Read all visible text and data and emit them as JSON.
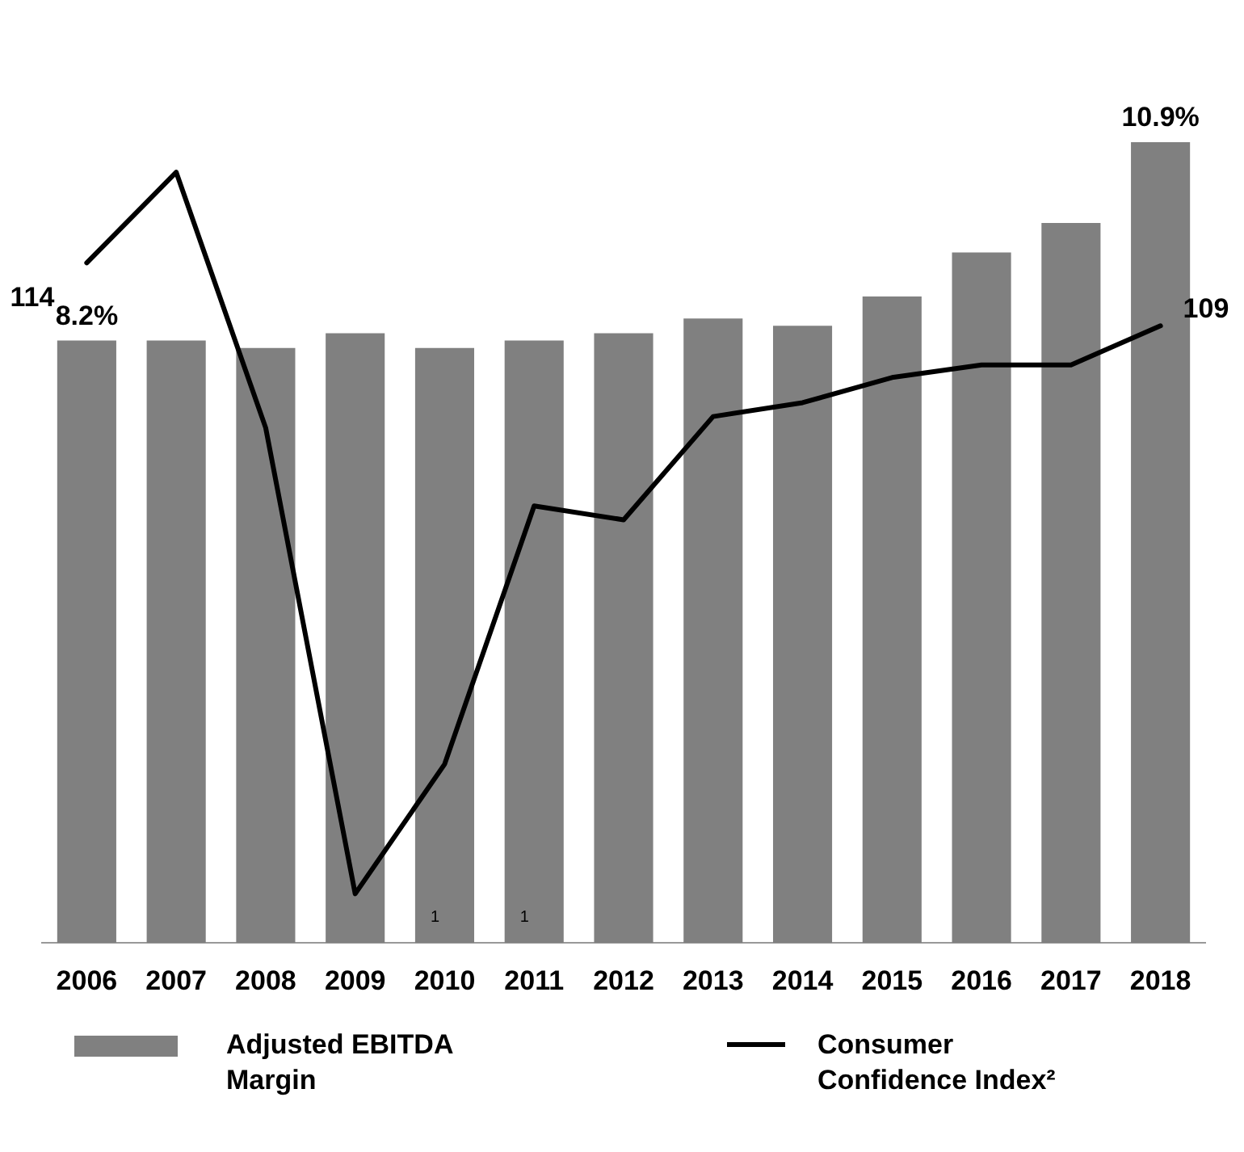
{
  "chart_data": {
    "type": "bar",
    "categories": [
      "2006",
      "2007",
      "2008",
      "2009",
      "2010",
      "2011",
      "2012",
      "2013",
      "2014",
      "2015",
      "2016",
      "2017",
      "2018"
    ],
    "series": [
      {
        "name": "Adjusted EBITDA Margin",
        "color": "#808080",
        "values": [
          8.2,
          8.2,
          8.1,
          8.3,
          8.1,
          8.2,
          8.3,
          8.5,
          8.4,
          8.8,
          9.4,
          9.8,
          10.9
        ],
        "value_labels": [
          "8.2%",
          null,
          null,
          null,
          null,
          null,
          null,
          null,
          null,
          null,
          null,
          null,
          "10.9%"
        ]
      },
      {
        "name": "Consumer Confidence Index²",
        "type": "line",
        "axis": "y2",
        "color": "#000000",
        "values": [
          114,
          121.2,
          100.9,
          63.9,
          74.2,
          94.7,
          93.6,
          101.8,
          102.9,
          104.9,
          105.9,
          105.9,
          109
        ],
        "value_labels": [
          "114",
          null,
          null,
          null,
          null,
          null,
          null,
          null,
          null,
          null,
          null,
          null,
          "109"
        ]
      }
    ],
    "annotations": [
      "1",
      "1"
    ],
    "legend": "bottom",
    "marker": "none",
    "tick_labels": "x"
  }
}
